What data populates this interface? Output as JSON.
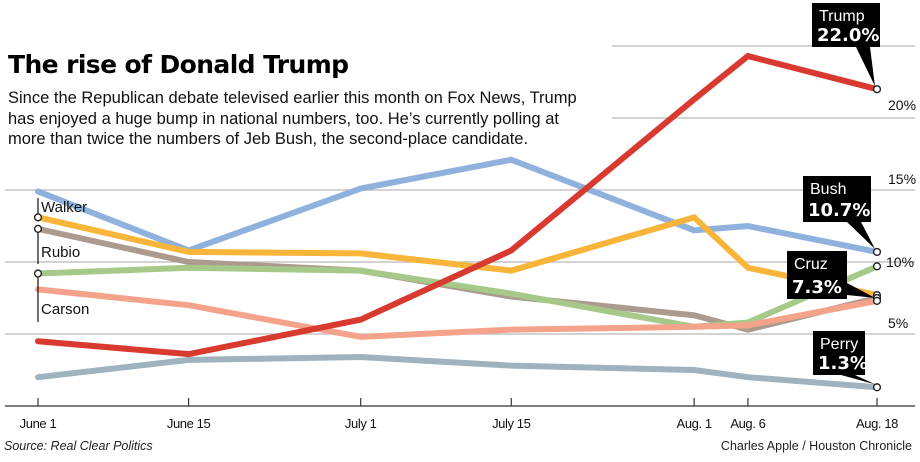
{
  "chart_data": {
    "type": "line",
    "title": "The rise of Donald Trump",
    "subtitle_lines": [
      "Since the Republican debate televised earlier this month on Fox News, Trump",
      "has enjoyed a huge bump in national numbers, too. He’s currently polling at",
      "more than twice the numbers of Jeb Bush, the second-place candidate."
    ],
    "xlabel": "",
    "ylabel": "",
    "x": [
      "June 1",
      "June 15",
      "July 1",
      "July 15",
      "Aug. 1",
      "Aug. 6",
      "Aug. 18"
    ],
    "x_days": [
      0,
      14,
      30,
      44,
      61,
      66,
      78
    ],
    "ylim": [
      0,
      25
    ],
    "yticks": [
      5,
      10,
      15,
      20
    ],
    "ytick_labels": [
      "5%",
      "10%",
      "15%",
      "20%"
    ],
    "grid": true,
    "series": [
      {
        "name": "Bush",
        "color": "#8fb1de",
        "values": [
          14.9,
          10.8,
          15.1,
          17.1,
          12.2,
          12.5,
          10.7
        ]
      },
      {
        "name": "Walker",
        "color": "#f9b43a",
        "values": [
          13.1,
          10.7,
          10.6,
          9.4,
          13.1,
          9.6,
          7.7
        ]
      },
      {
        "name": "Rubio",
        "color": "#ab9a8d",
        "values": [
          12.3,
          10.0,
          9.4,
          7.6,
          6.3,
          5.3,
          7.5
        ]
      },
      {
        "name": "Carson",
        "color": "#a6c98a",
        "values": [
          9.2,
          9.6,
          9.4,
          7.8,
          5.5,
          5.8,
          9.7
        ]
      },
      {
        "name": "Cruz",
        "color": "#f4a38a",
        "values": [
          8.1,
          7.0,
          4.8,
          5.3,
          5.5,
          5.6,
          7.3
        ]
      },
      {
        "name": "Perry",
        "color": "#9fb2bf",
        "values": [
          2.0,
          3.2,
          3.4,
          2.8,
          2.5,
          2.0,
          1.3
        ]
      },
      {
        "name": "Trump",
        "color": "#d93a30",
        "values": [
          4.5,
          3.6,
          6.0,
          10.8,
          21.3,
          24.3,
          22.0
        ]
      }
    ],
    "start_labels": [
      {
        "name": "Walker",
        "series": "Walker"
      },
      {
        "name": "Rubio",
        "series": "Rubio"
      },
      {
        "name": "Carson",
        "series": "Carson"
      }
    ],
    "end_callouts": [
      {
        "name": "Trump",
        "value_label": "22.0%",
        "series": "Trump"
      },
      {
        "name": "Bush",
        "value_label": "10.7%",
        "series": "Bush"
      },
      {
        "name": "Cruz",
        "value_label": "7.3%",
        "series": "Cruz"
      },
      {
        "name": "Perry",
        "value_label": "1.3%",
        "series": "Perry"
      }
    ],
    "source": "Source: Real Clear Politics",
    "credit": "Charles Apple / Houston Chronicle"
  }
}
